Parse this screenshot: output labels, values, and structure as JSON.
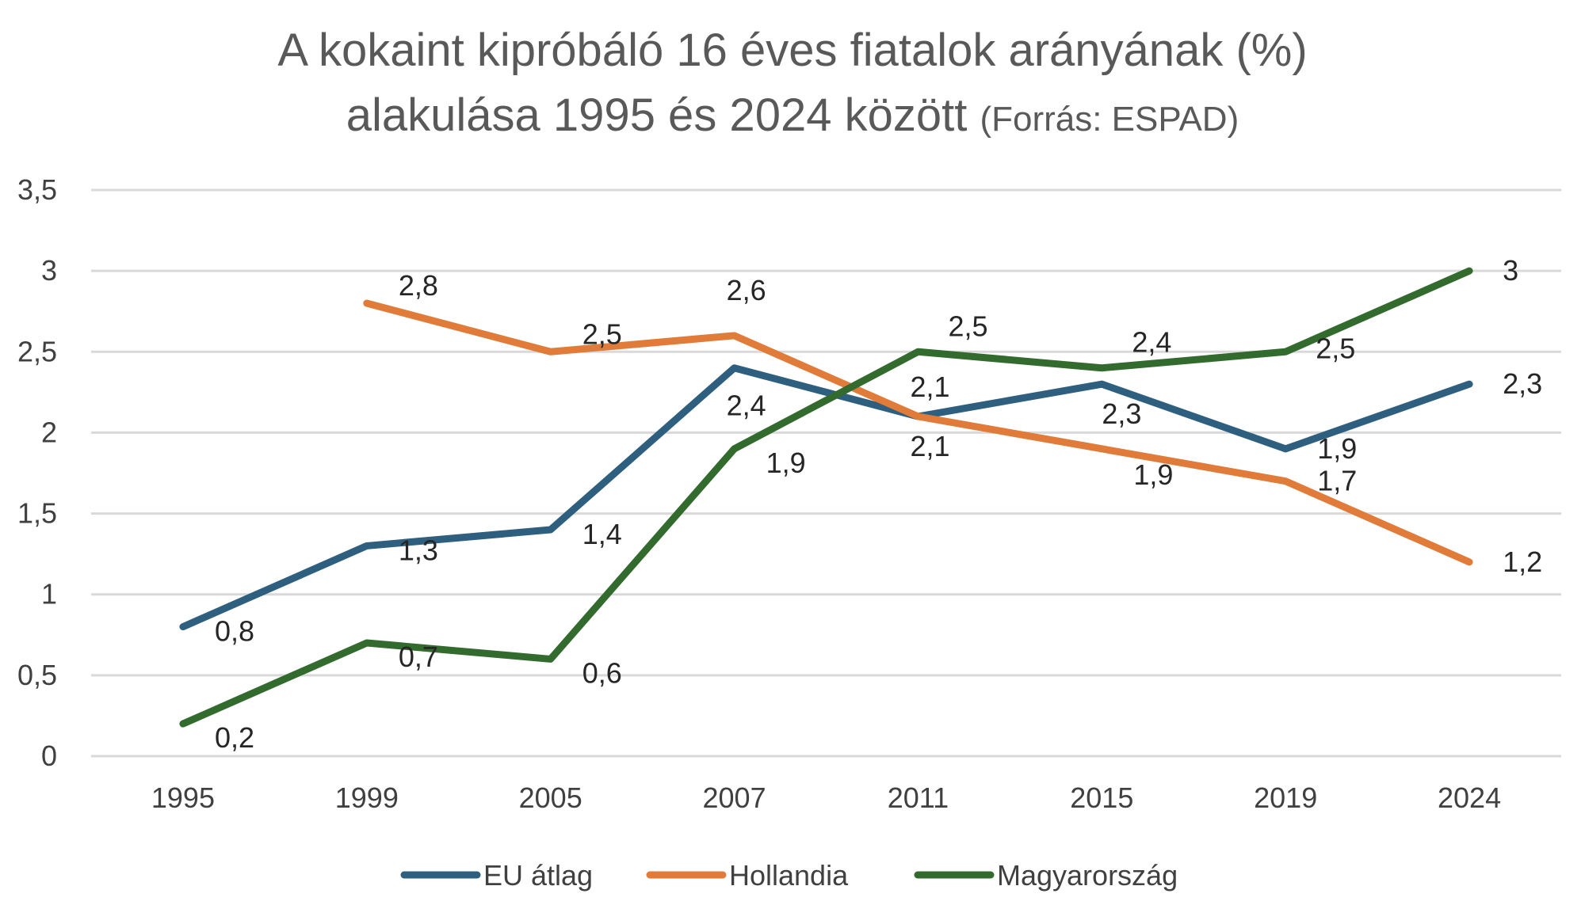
{
  "title": {
    "line1": "A kokaint kipróbáló 16 éves fiatalok arányának (%)",
    "line2_main": "alakulása 1995 és 2024 között",
    "line2_source": "(Forrás: ESPAD)"
  },
  "chart_data": {
    "type": "line",
    "categories": [
      "1995",
      "1999",
      "2005",
      "2007",
      "2011",
      "2015",
      "2019",
      "2024"
    ],
    "ylim": [
      0,
      3.5
    ],
    "y_ticks": [
      "0",
      "0,5",
      "1",
      "1,5",
      "2",
      "2,5",
      "3",
      "3,5"
    ],
    "grid": true,
    "legend_position": "bottom",
    "series": [
      {
        "name": "EU átlag",
        "color": "#2E5F7F",
        "values": [
          0.8,
          1.3,
          1.4,
          2.4,
          2.1,
          2.3,
          1.9,
          2.3
        ],
        "labels": [
          "0,8",
          "1,3",
          "1,4",
          "2,4",
          "2,1",
          "2,3",
          "1,9",
          "2,3"
        ]
      },
      {
        "name": "Hollandia",
        "color": "#E07B39",
        "values": [
          null,
          2.8,
          2.5,
          2.6,
          2.1,
          1.9,
          1.7,
          1.2
        ],
        "labels": [
          null,
          "2,8",
          "2,5",
          "2,6",
          "2,1",
          "1,9",
          "1,7",
          "1,2"
        ]
      },
      {
        "name": "Magyarország",
        "color": "#336B2E",
        "values": [
          0.2,
          0.7,
          0.6,
          1.9,
          2.5,
          2.4,
          2.5,
          3.0
        ],
        "labels": [
          "0,2",
          "0,7",
          "0,6",
          "1,9",
          "2,5",
          "2,4",
          "2,5",
          "3"
        ]
      }
    ]
  }
}
